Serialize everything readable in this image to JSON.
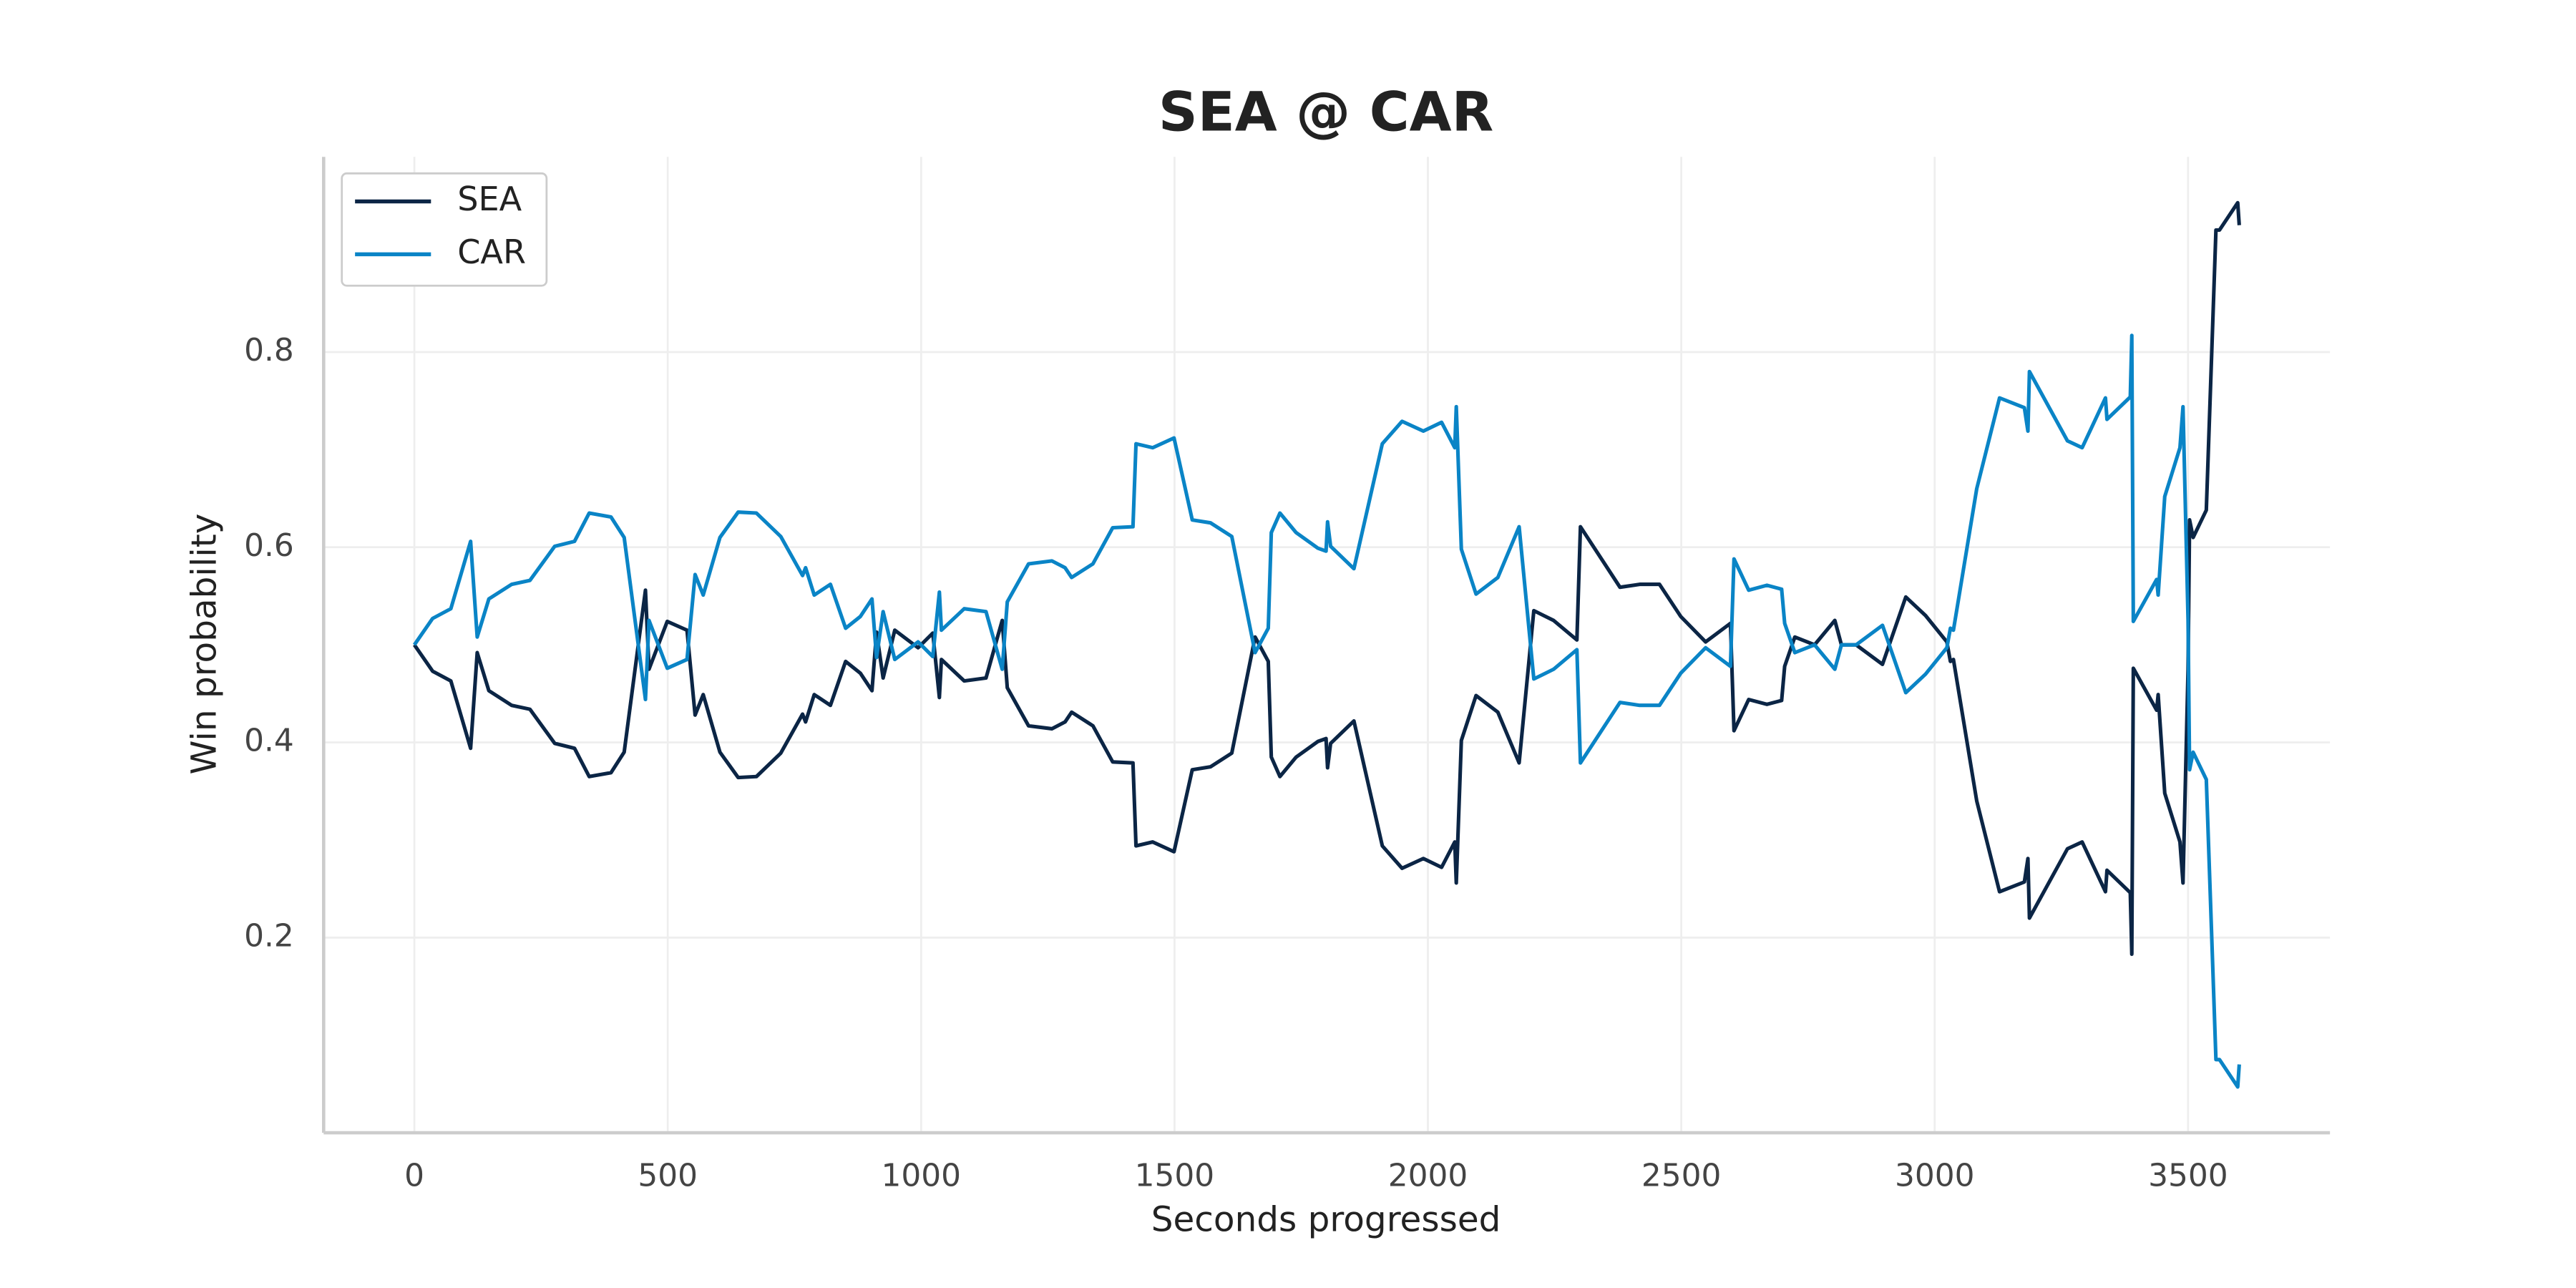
{
  "chart_data": {
    "type": "line",
    "title": "SEA @ CAR",
    "xlabel": "Seconds progressed",
    "ylabel": "Win probability",
    "x": [
      0,
      36,
      72,
      111,
      124,
      147,
      192,
      228,
      277,
      316,
      345,
      388,
      414,
      456,
      463,
      499,
      538,
      554,
      570,
      603,
      639,
      675,
      723,
      766,
      772,
      789,
      821,
      851,
      880,
      903,
      912,
      925,
      948,
      994,
      1023,
      1036,
      1040,
      1085,
      1128,
      1160,
      1170,
      1212,
      1258,
      1284,
      1297,
      1339,
      1378,
      1418,
      1424,
      1457,
      1499,
      1535,
      1571,
      1613,
      1659,
      1685,
      1691,
      1708,
      1740,
      1783,
      1799,
      1802,
      1808,
      1854,
      1910,
      1949,
      1991,
      2027,
      2053,
      2056,
      2066,
      2095,
      2138,
      2180,
      2209,
      2248,
      2294,
      2301,
      2379,
      2418,
      2457,
      2499,
      2548,
      2597,
      2604,
      2633,
      2669,
      2698,
      2704,
      2724,
      2763,
      2803,
      2816,
      2845,
      2897,
      2943,
      2982,
      3024,
      3031,
      3037,
      3083,
      3128,
      3177,
      3184,
      3187,
      3262,
      3291,
      3337,
      3340,
      3386,
      3389,
      3392,
      3438,
      3441,
      3454,
      3484,
      3490,
      3500,
      3503,
      3510,
      3536,
      3555,
      3562,
      3598,
      3601
    ],
    "series": [
      {
        "name": "SEA",
        "color": "#0b2545",
        "values": [
          0.5,
          0.473,
          0.463,
          0.394,
          0.492,
          0.453,
          0.438,
          0.434,
          0.399,
          0.394,
          0.365,
          0.369,
          0.39,
          0.556,
          0.475,
          0.524,
          0.515,
          0.428,
          0.449,
          0.39,
          0.364,
          0.365,
          0.389,
          0.429,
          0.421,
          0.449,
          0.438,
          0.483,
          0.471,
          0.453,
          0.513,
          0.466,
          0.515,
          0.497,
          0.512,
          0.446,
          0.485,
          0.463,
          0.466,
          0.525,
          0.456,
          0.417,
          0.414,
          0.421,
          0.431,
          0.417,
          0.38,
          0.379,
          0.294,
          0.298,
          0.288,
          0.372,
          0.375,
          0.389,
          0.508,
          0.483,
          0.385,
          0.365,
          0.385,
          0.401,
          0.404,
          0.374,
          0.399,
          0.422,
          0.294,
          0.271,
          0.281,
          0.272,
          0.298,
          0.256,
          0.402,
          0.448,
          0.431,
          0.379,
          0.535,
          0.525,
          0.505,
          0.621,
          0.559,
          0.562,
          0.562,
          0.529,
          0.503,
          0.522,
          0.412,
          0.444,
          0.439,
          0.443,
          0.478,
          0.508,
          0.5,
          0.525,
          0.5,
          0.5,
          0.48,
          0.549,
          0.53,
          0.503,
          0.483,
          0.485,
          0.34,
          0.247,
          0.257,
          0.281,
          0.22,
          0.291,
          0.298,
          0.247,
          0.269,
          0.246,
          0.183,
          0.476,
          0.433,
          0.449,
          0.348,
          0.298,
          0.256,
          0.475,
          0.628,
          0.61,
          0.638,
          0.925,
          0.925,
          0.953,
          0.93
        ]
      },
      {
        "name": "CAR",
        "color": "#0a84c6",
        "values": [
          0.5,
          0.527,
          0.537,
          0.606,
          0.508,
          0.547,
          0.562,
          0.566,
          0.601,
          0.606,
          0.635,
          0.631,
          0.61,
          0.444,
          0.525,
          0.476,
          0.485,
          0.572,
          0.551,
          0.61,
          0.636,
          0.635,
          0.611,
          0.571,
          0.579,
          0.551,
          0.562,
          0.517,
          0.529,
          0.547,
          0.487,
          0.534,
          0.485,
          0.503,
          0.488,
          0.554,
          0.515,
          0.537,
          0.534,
          0.475,
          0.544,
          0.583,
          0.586,
          0.579,
          0.569,
          0.583,
          0.62,
          0.621,
          0.706,
          0.702,
          0.712,
          0.628,
          0.625,
          0.611,
          0.492,
          0.517,
          0.615,
          0.635,
          0.615,
          0.599,
          0.596,
          0.626,
          0.601,
          0.578,
          0.706,
          0.729,
          0.719,
          0.728,
          0.702,
          0.744,
          0.598,
          0.552,
          0.569,
          0.621,
          0.465,
          0.475,
          0.495,
          0.379,
          0.441,
          0.438,
          0.438,
          0.471,
          0.497,
          0.478,
          0.588,
          0.556,
          0.561,
          0.557,
          0.522,
          0.492,
          0.5,
          0.475,
          0.5,
          0.5,
          0.52,
          0.451,
          0.47,
          0.497,
          0.517,
          0.515,
          0.66,
          0.753,
          0.743,
          0.719,
          0.78,
          0.709,
          0.702,
          0.753,
          0.731,
          0.754,
          0.817,
          0.524,
          0.567,
          0.551,
          0.652,
          0.702,
          0.744,
          0.525,
          0.372,
          0.39,
          0.362,
          0.075,
          0.075,
          0.047,
          0.07
        ]
      }
    ],
    "xlim": [
      -179,
      3780
    ],
    "ylim": [
      0,
      1
    ],
    "xticks": [
      0,
      500,
      1000,
      1500,
      2000,
      2500,
      3000,
      3500
    ],
    "yticks": [
      0.2,
      0.4,
      0.6,
      0.8
    ],
    "grid": true,
    "legend": "upper left"
  }
}
